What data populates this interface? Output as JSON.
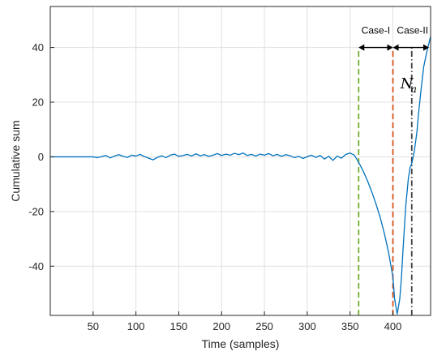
{
  "chart_data": {
    "type": "line",
    "title": "",
    "xlabel": "Time (samples)",
    "ylabel": "Cumulative sum",
    "xlim": [
      0,
      444
    ],
    "ylim": [
      -58,
      55
    ],
    "grid": true,
    "x_ticks": [
      50,
      100,
      150,
      200,
      250,
      300,
      350,
      400
    ],
    "y_ticks": [
      -40,
      -20,
      0,
      20,
      40
    ],
    "series": [
      {
        "color": "#0072bd",
        "x": [
          0,
          50,
          55,
          60,
          65,
          70,
          75,
          80,
          85,
          90,
          95,
          100,
          105,
          110,
          115,
          120,
          125,
          130,
          135,
          140,
          145,
          150,
          155,
          160,
          165,
          170,
          175,
          180,
          185,
          190,
          195,
          200,
          205,
          210,
          215,
          220,
          225,
          230,
          235,
          240,
          245,
          250,
          255,
          260,
          265,
          270,
          275,
          280,
          285,
          290,
          295,
          300,
          305,
          310,
          315,
          320,
          325,
          330,
          335,
          340,
          345,
          350,
          355,
          360,
          365,
          370,
          375,
          380,
          385,
          390,
          395,
          400,
          402,
          405,
          408,
          410,
          412,
          415,
          418,
          420,
          422,
          425,
          428,
          430,
          433,
          436,
          440,
          444
        ],
        "y": [
          0,
          0,
          -0.3,
          0.1,
          0.5,
          -0.4,
          0.3,
          0.8,
          0.2,
          -0.2,
          0.6,
          0.3,
          0.9,
          0.1,
          -0.5,
          -1.1,
          -0.2,
          0.4,
          -0.3,
          0.6,
          1.0,
          0.2,
          0.5,
          0.9,
          0.3,
          1.1,
          0.4,
          0.8,
          0.2,
          0.6,
          1.2,
          0.5,
          1.0,
          0.6,
          1.3,
          0.8,
          1.4,
          0.5,
          0.9,
          0.3,
          1.0,
          0.6,
          1.2,
          0.4,
          0.9,
          0.2,
          0.8,
          0.4,
          -0.3,
          0.2,
          -0.6,
          0.1,
          0.6,
          -0.2,
          0.5,
          -0.8,
          0.2,
          -1.3,
          0.3,
          -0.5,
          0.9,
          1.4,
          0.6,
          -2.0,
          -5.0,
          -8.5,
          -12.5,
          -17.0,
          -22.0,
          -28.0,
          -35.0,
          -44.0,
          -52.0,
          -57.5,
          -52.0,
          -44.0,
          -33.0,
          -18.0,
          -8.0,
          -4.0,
          -2.5,
          2.0,
          9.0,
          16.0,
          25.0,
          33.0,
          39.0,
          44.0
        ]
      }
    ],
    "annotations": {
      "case_1": "Case-I",
      "case_2": "Case-II",
      "na_main": "N",
      "na_sub": "a"
    },
    "vlines": [
      {
        "x": 360,
        "color": "#77ac30",
        "style": "dashed"
      },
      {
        "x": 400,
        "color": "#d95319",
        "style": "dashed"
      },
      {
        "x": 422,
        "color": "#404040",
        "style": "dashdot"
      }
    ]
  }
}
